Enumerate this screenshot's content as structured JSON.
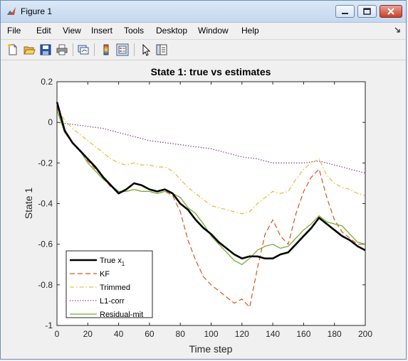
{
  "window": {
    "title": "Figure 1",
    "menu": [
      "File",
      "Edit",
      "View",
      "Insert",
      "Tools",
      "Desktop",
      "Window",
      "Help"
    ],
    "toolbar_icons": [
      "new-figure-icon",
      "open-file-icon",
      "save-icon",
      "print-icon",
      "link-plot-icon",
      "insert-colorbar-icon",
      "insert-legend-icon",
      "edit-plot-icon",
      "property-inspector-icon"
    ]
  },
  "colors": {
    "true": "#000000",
    "kf": "#d95319",
    "trimmed": "#edb120",
    "l1": "#7e2f8e",
    "residual": "#77ac30"
  },
  "chart_data": {
    "type": "line",
    "title": "State 1: true vs estimates",
    "xlabel": "Time step",
    "ylabel": "State 1",
    "xlim": [
      0,
      200
    ],
    "ylim": [
      -1,
      0.2
    ],
    "xticks": [
      0,
      20,
      40,
      60,
      80,
      100,
      120,
      140,
      160,
      180,
      200
    ],
    "yticks": [
      0.2,
      0,
      -0.2,
      -0.4,
      -0.6,
      -0.8,
      -1
    ],
    "ytick_labels": [
      "0.2",
      "0",
      "-0.2",
      "-0.4",
      "-0.6",
      "-0.8",
      "-1"
    ],
    "legend_position": "bottom-left",
    "series": [
      {
        "name": "True x",
        "name_sub": "1",
        "style": "solid-thick",
        "x": [
          0,
          5,
          10,
          15,
          20,
          25,
          30,
          35,
          40,
          45,
          50,
          55,
          60,
          65,
          70,
          75,
          80,
          85,
          90,
          95,
          100,
          105,
          110,
          115,
          120,
          125,
          130,
          135,
          140,
          145,
          150,
          155,
          160,
          165,
          170,
          175,
          180,
          185,
          190,
          195,
          200
        ],
        "y": [
          0.1,
          -0.04,
          -0.1,
          -0.14,
          -0.18,
          -0.22,
          -0.27,
          -0.31,
          -0.35,
          -0.33,
          -0.3,
          -0.31,
          -0.33,
          -0.34,
          -0.33,
          -0.35,
          -0.4,
          -0.43,
          -0.48,
          -0.52,
          -0.55,
          -0.59,
          -0.62,
          -0.65,
          -0.67,
          -0.66,
          -0.66,
          -0.67,
          -0.67,
          -0.65,
          -0.64,
          -0.6,
          -0.56,
          -0.52,
          -0.47,
          -0.5,
          -0.53,
          -0.56,
          -0.58,
          -0.61,
          -0.63
        ]
      },
      {
        "name": "KF",
        "style": "dashed",
        "x": [
          0,
          5,
          10,
          15,
          20,
          25,
          30,
          35,
          40,
          45,
          50,
          55,
          60,
          65,
          70,
          75,
          80,
          85,
          90,
          95,
          100,
          105,
          110,
          115,
          120,
          125,
          130,
          135,
          140,
          145,
          150,
          155,
          160,
          165,
          170,
          175,
          180,
          185,
          190,
          195,
          200
        ],
        "y": [
          0.08,
          -0.05,
          -0.1,
          -0.14,
          -0.19,
          -0.23,
          -0.27,
          -0.32,
          -0.34,
          -0.34,
          -0.33,
          -0.34,
          -0.34,
          -0.35,
          -0.34,
          -0.36,
          -0.44,
          -0.58,
          -0.68,
          -0.76,
          -0.8,
          -0.83,
          -0.86,
          -0.89,
          -0.87,
          -0.91,
          -0.72,
          -0.55,
          -0.48,
          -0.56,
          -0.6,
          -0.45,
          -0.34,
          -0.27,
          -0.23,
          -0.37,
          -0.48,
          -0.54,
          -0.57,
          -0.6,
          -0.6
        ]
      },
      {
        "name": "Trimmed",
        "style": "dashdot",
        "x": [
          0,
          5,
          10,
          15,
          20,
          25,
          30,
          35,
          40,
          45,
          50,
          55,
          60,
          65,
          70,
          75,
          80,
          85,
          90,
          95,
          100,
          105,
          110,
          115,
          120,
          125,
          130,
          135,
          140,
          145,
          150,
          155,
          160,
          165,
          170,
          175,
          180,
          185,
          190,
          195,
          200
        ],
        "y": [
          0.07,
          0.01,
          -0.03,
          -0.06,
          -0.09,
          -0.12,
          -0.15,
          -0.18,
          -0.2,
          -0.21,
          -0.2,
          -0.21,
          -0.21,
          -0.22,
          -0.22,
          -0.24,
          -0.28,
          -0.32,
          -0.35,
          -0.38,
          -0.41,
          -0.42,
          -0.43,
          -0.44,
          -0.45,
          -0.44,
          -0.4,
          -0.37,
          -0.34,
          -0.35,
          -0.34,
          -0.28,
          -0.23,
          -0.2,
          -0.18,
          -0.26,
          -0.3,
          -0.32,
          -0.33,
          -0.35,
          -0.36
        ]
      },
      {
        "name": "L1-corr",
        "style": "dotted",
        "x": [
          0,
          10,
          20,
          30,
          40,
          50,
          60,
          70,
          80,
          90,
          100,
          110,
          120,
          130,
          140,
          150,
          160,
          170,
          180,
          190,
          200
        ],
        "y": [
          0.0,
          -0.01,
          -0.02,
          -0.03,
          -0.05,
          -0.07,
          -0.09,
          -0.1,
          -0.11,
          -0.12,
          -0.13,
          -0.15,
          -0.17,
          -0.18,
          -0.2,
          -0.2,
          -0.2,
          -0.19,
          -0.21,
          -0.23,
          -0.25
        ]
      },
      {
        "name": "Residual-mit",
        "style": "solid",
        "x": [
          0,
          5,
          10,
          15,
          20,
          25,
          30,
          35,
          40,
          45,
          50,
          55,
          60,
          65,
          70,
          75,
          80,
          85,
          90,
          95,
          100,
          105,
          110,
          115,
          120,
          125,
          130,
          135,
          140,
          145,
          150,
          155,
          160,
          165,
          170,
          175,
          180,
          185,
          190,
          195,
          200
        ],
        "y": [
          0.06,
          -0.05,
          -0.1,
          -0.14,
          -0.2,
          -0.24,
          -0.28,
          -0.31,
          -0.34,
          -0.34,
          -0.33,
          -0.34,
          -0.34,
          -0.35,
          -0.34,
          -0.35,
          -0.37,
          -0.42,
          -0.45,
          -0.5,
          -0.56,
          -0.6,
          -0.64,
          -0.68,
          -0.7,
          -0.67,
          -0.63,
          -0.61,
          -0.6,
          -0.62,
          -0.61,
          -0.57,
          -0.53,
          -0.5,
          -0.46,
          -0.49,
          -0.5,
          -0.51,
          -0.55,
          -0.59,
          -0.6
        ]
      }
    ]
  }
}
